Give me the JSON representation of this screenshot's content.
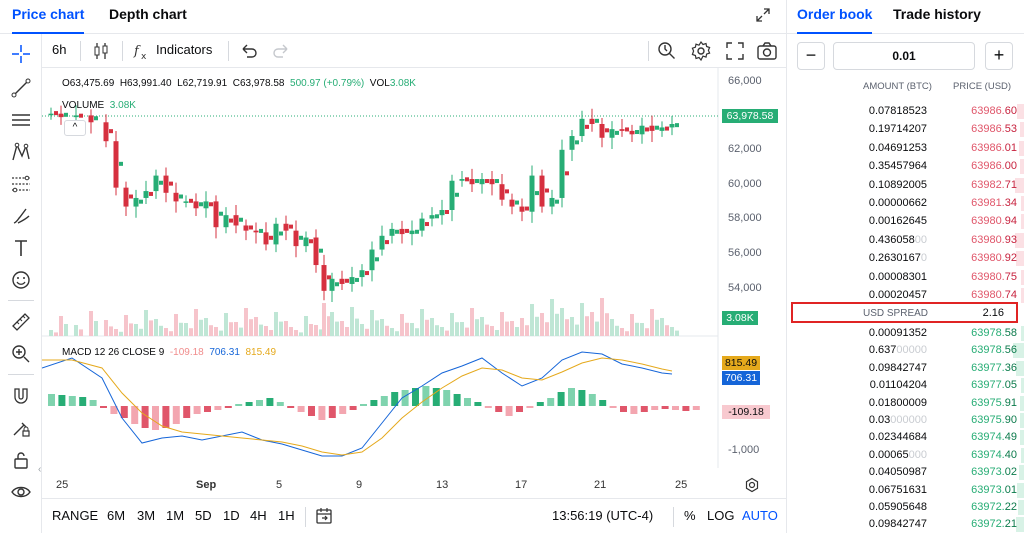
{
  "tabs": {
    "price_chart": "Price chart",
    "depth_chart": "Depth chart"
  },
  "toolbar": {
    "interval": "6h",
    "indicators": "Indicators"
  },
  "legend": {
    "open": "O63,475.69",
    "high": "H63,991.40",
    "low": "L62,719.91",
    "close": "C63,978.58",
    "change": "500.97 (+0.79%)",
    "vol_label": "VOL",
    "vol_value": "3.08K"
  },
  "volume_label": {
    "label": "VOLUME",
    "value": "3.08K"
  },
  "macd": {
    "label": "MACD 12 26 CLOSE 9",
    "hist": "-109.18",
    "macd": "706.31",
    "signal": "815.49"
  },
  "price_axis": [
    "66,000",
    "64,000",
    "62,000",
    "60,000",
    "58,000",
    "56,000",
    "54,000"
  ],
  "macd_axis": [
    "-1,000"
  ],
  "time_axis": [
    "25",
    "Sep",
    "5",
    "9",
    "13",
    "17",
    "21",
    "25"
  ],
  "tags": {
    "last_price": "63,978.58",
    "volume": "3.08K",
    "signal": "815.49",
    "macd": "706.31",
    "hist": "-109.18"
  },
  "colors": {
    "up": "#27ad75",
    "down": "#d6303f",
    "accent": "#0052ff",
    "macd_line": "#1565d8",
    "signal_line": "#e5a91c"
  },
  "bottombar": {
    "range": "RANGE",
    "ranges": [
      "6M",
      "3M",
      "1M",
      "5D",
      "1D",
      "4H",
      "1H"
    ],
    "time": "13:56:19 (UTC-4)",
    "percent": "%",
    "log": "LOG",
    "auto": "AUTO"
  },
  "orderbook": {
    "tabs": {
      "order_book": "Order book",
      "trade_history": "Trade history"
    },
    "step": {
      "minus": "−",
      "value": "0.01",
      "plus": "+"
    },
    "headers": {
      "amount": "AMOUNT (BTC)",
      "price": "PRICE (USD)"
    },
    "asks": [
      {
        "amount": "0.07818523",
        "price_main": "63986.",
        "price_end": "60"
      },
      {
        "amount": "0.19714207",
        "price_main": "63986.",
        "price_end": "53"
      },
      {
        "amount": "0.04691253",
        "price_main": "63986.",
        "price_end": "01"
      },
      {
        "amount": "0.35457964",
        "price_main": "63986.",
        "price_end": "00"
      },
      {
        "amount": "0.10892005",
        "price_main": "63982.",
        "price_end": "71"
      },
      {
        "amount": "0.00000662",
        "price_main": "63981.",
        "price_end": "34"
      },
      {
        "amount": "0.00162645",
        "price_main": "63980.",
        "price_end": "94"
      },
      {
        "amount": "0.436058",
        "amount_dim": "00",
        "price_main": "63980.",
        "price_end": "93"
      },
      {
        "amount": "0.2630167",
        "amount_dim": "0",
        "price_main": "63980.",
        "price_end": "92"
      },
      {
        "amount": "0.00008301",
        "price_main": "63980.",
        "price_end": "75"
      },
      {
        "amount": "0.00020457",
        "price_main": "63980.",
        "price_end": "74"
      }
    ],
    "spread": {
      "label": "USD SPREAD",
      "value": "2.16"
    },
    "bids": [
      {
        "amount": "0.00091352",
        "price_main": "63978.",
        "price_end": "58"
      },
      {
        "amount": "0.637",
        "amount_dim": "00000",
        "price_main": "63978.",
        "price_end": "56"
      },
      {
        "amount": "0.09842747",
        "price_main": "63977.",
        "price_end": "36"
      },
      {
        "amount": "0.01104204",
        "price_main": "63977.",
        "price_end": "05"
      },
      {
        "amount": "0.01800009",
        "price_main": "63975.",
        "price_end": "91"
      },
      {
        "amount": "0.03",
        "amount_dim": "000000",
        "price_main": "63975.",
        "price_end": "90"
      },
      {
        "amount": "0.02344684",
        "price_main": "63974.",
        "price_end": "49"
      },
      {
        "amount": "0.00065",
        "amount_dim": "000",
        "price_main": "63974.",
        "price_end": "40"
      },
      {
        "amount": "0.04050987",
        "price_main": "63973.",
        "price_end": "02"
      },
      {
        "amount": "0.06751631",
        "price_main": "63973.",
        "price_end": "01"
      },
      {
        "amount": "0.05905648",
        "price_main": "63972.",
        "price_end": "22"
      },
      {
        "amount": "0.09842747",
        "price_main": "63972.",
        "price_end": "21"
      }
    ]
  }
}
